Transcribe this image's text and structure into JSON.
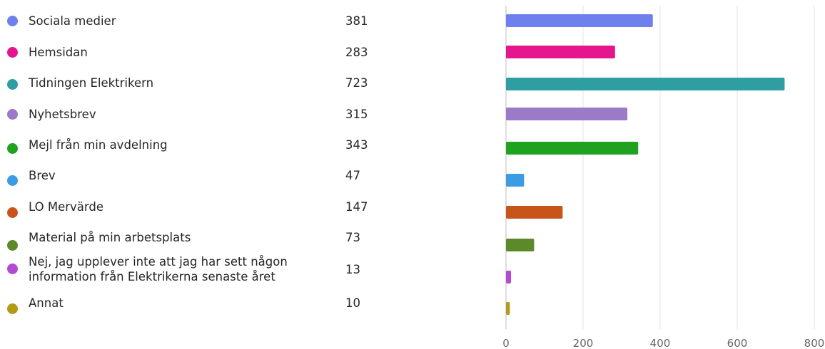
{
  "chart_data": {
    "type": "bar",
    "orientation": "horizontal",
    "categories": [
      "Sociala medier",
      "Hemsidan",
      "Tidningen Elektrikern",
      "Nyhetsbrev",
      "Mejl från min avdelning",
      "Brev",
      "LO Mervärde",
      "Material på min arbetsplats",
      "Nej, jag upplever inte att jag har sett någon\ninformation från Elektrikerna senaste året",
      "Annat"
    ],
    "values": [
      381,
      283,
      723,
      315,
      343,
      47,
      147,
      73,
      13,
      10
    ],
    "colors": [
      "#6E7FEE",
      "#E5158E",
      "#2E9EA2",
      "#9B7BC8",
      "#1FA21F",
      "#3D9BE3",
      "#C8541B",
      "#5C8A2A",
      "#B14BD1",
      "#B49A16"
    ],
    "xlim": [
      0,
      800
    ],
    "xticks": [
      0,
      200,
      400,
      600,
      800
    ],
    "grid": true,
    "legend": "left"
  }
}
